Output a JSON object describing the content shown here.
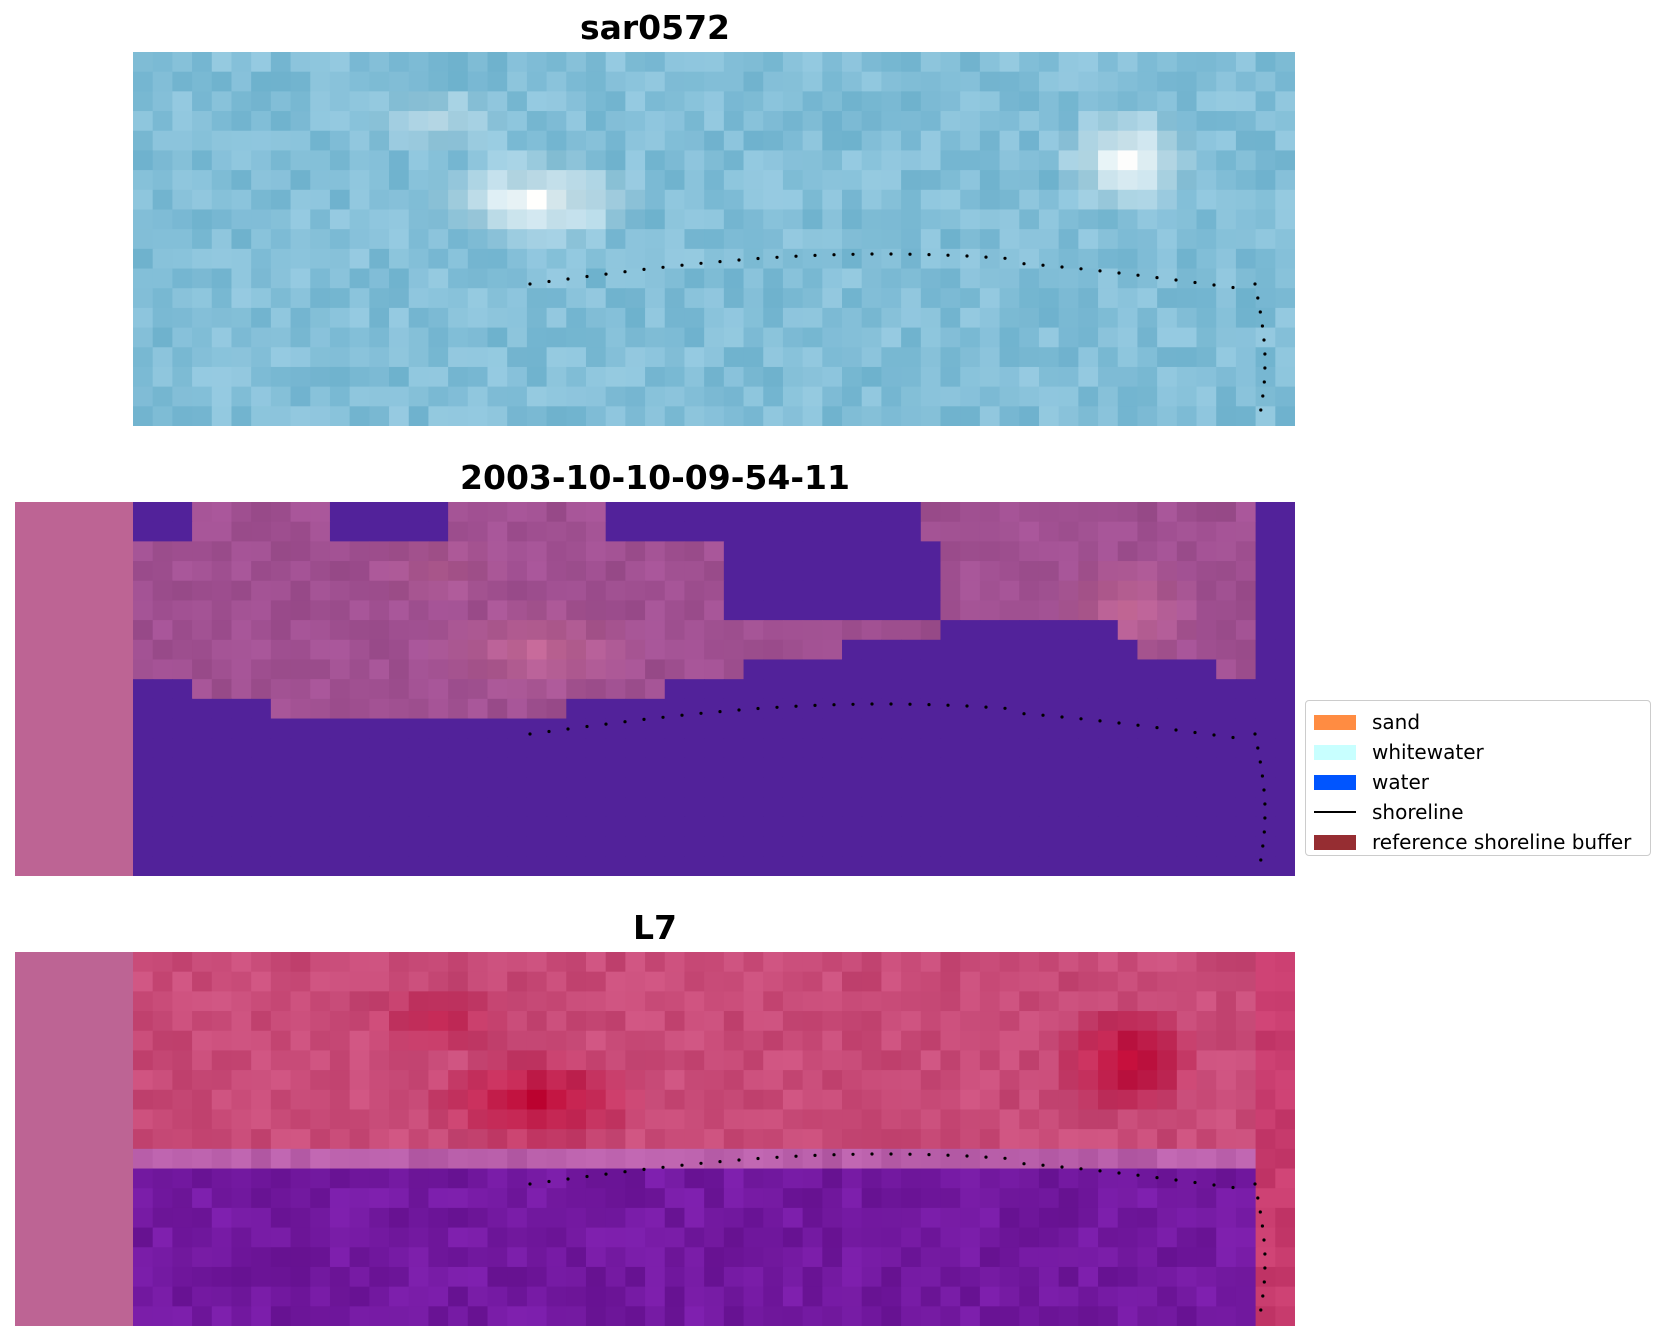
{
  "panels": [
    {
      "title": "sar0572",
      "kind": "rgb"
    },
    {
      "title": "2003-10-10-09-54-11",
      "kind": "classification"
    },
    {
      "title": "L7",
      "kind": "index"
    }
  ],
  "legend": {
    "items": [
      {
        "label": "sand",
        "color": "#ff8c42",
        "type": "patch"
      },
      {
        "label": "whitewater",
        "color": "#c8ffff",
        "type": "patch"
      },
      {
        "label": "water",
        "color": "#0055ff",
        "type": "patch"
      },
      {
        "label": "shoreline",
        "color": "#000000",
        "type": "line"
      },
      {
        "label": "reference shoreline buffer",
        "color": "#962d32",
        "type": "patch"
      }
    ]
  },
  "colors": {
    "water_class": "#52229a",
    "pad": "#bd6494",
    "land_class": "#a05a96",
    "shoreline": "#000000"
  }
}
